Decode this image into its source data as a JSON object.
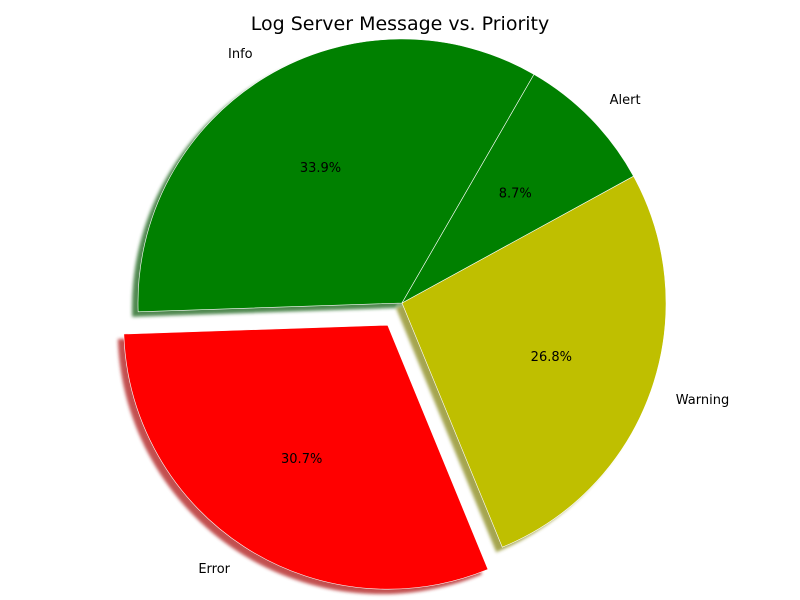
{
  "chart_data": {
    "type": "pie",
    "title": "Log Server Message vs. Priority",
    "start_angle_deg": 60,
    "direction": "counterclockwise",
    "shadow": true,
    "slices": [
      {
        "label": "Info",
        "percent": 33.9,
        "percent_label": "33.9%",
        "color": "#008000",
        "explode": 0
      },
      {
        "label": "Error",
        "percent": 30.7,
        "percent_label": "30.7%",
        "color": "#ff0000",
        "explode": 0.1
      },
      {
        "label": "Warning",
        "percent": 26.8,
        "percent_label": "26.8%",
        "color": "#bfbf00",
        "explode": 0
      },
      {
        "label": "Alert",
        "percent": 8.7,
        "percent_label": "8.7%",
        "color": "#008000",
        "explode": 0
      }
    ]
  }
}
